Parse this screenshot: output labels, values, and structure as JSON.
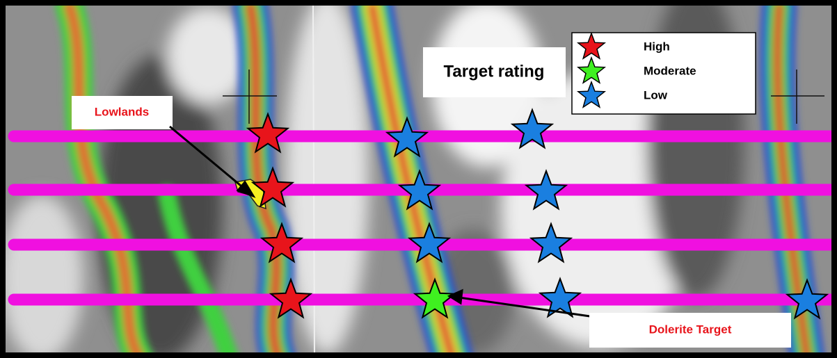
{
  "annotations": {
    "target_rating": "Target rating",
    "lowlands": "Lowlands",
    "dolerite_target": "Dolerite Target"
  },
  "legend": [
    {
      "label": "High",
      "color": "#e8141b"
    },
    {
      "label": "Moderate",
      "color": "#3ff020"
    },
    {
      "label": "Low",
      "color": "#1a7fe0"
    }
  ]
}
